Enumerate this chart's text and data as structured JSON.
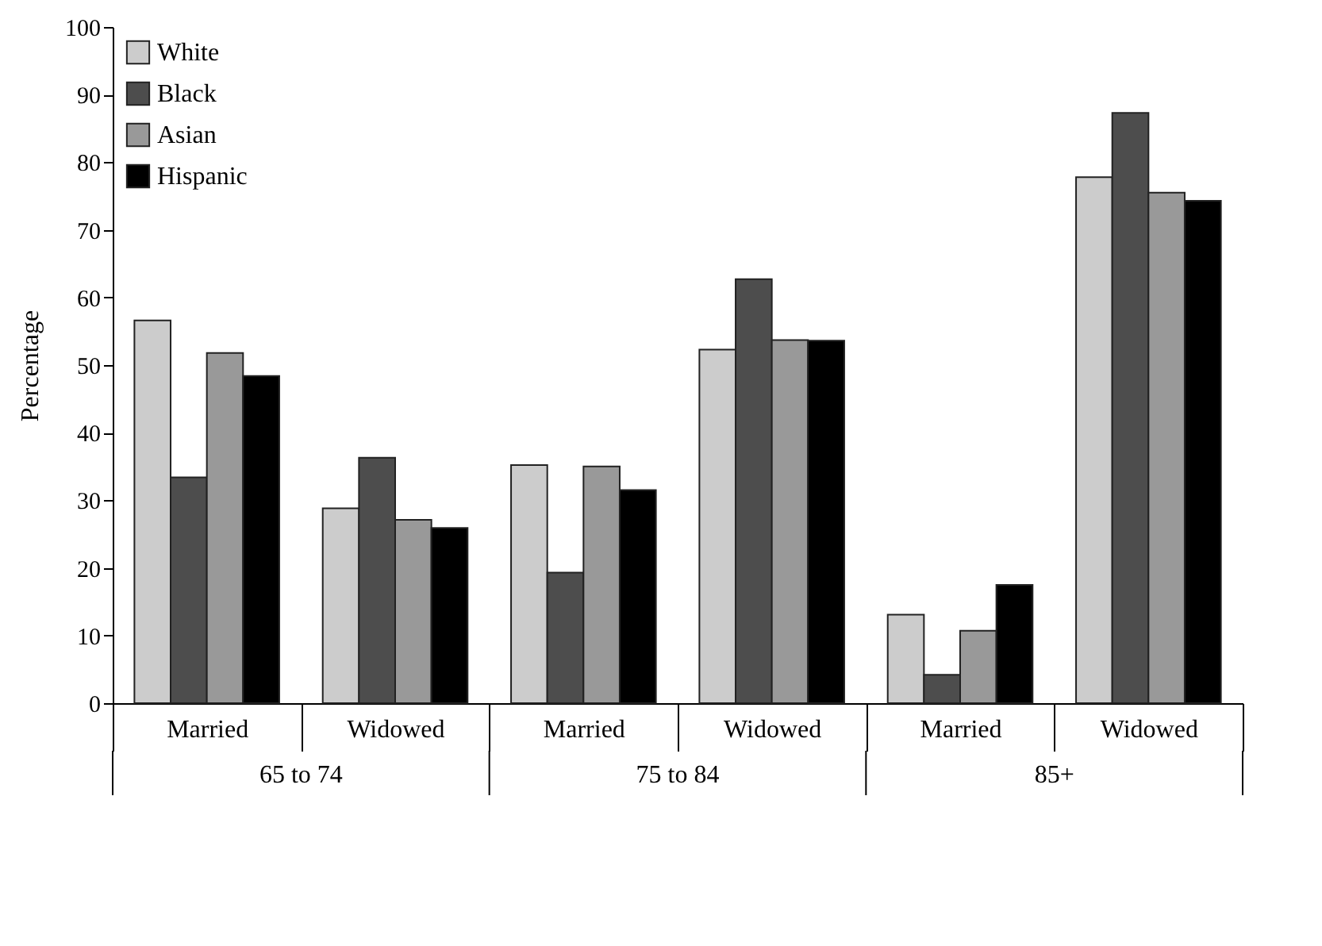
{
  "chart_data": {
    "type": "bar",
    "ylabel": "Percentage",
    "categories": [
      "Married",
      "Widowed",
      "Married",
      "Widowed",
      "Married",
      "Widowed"
    ],
    "series": [
      {
        "name": "White",
        "color": "#cccccc",
        "values": [
          56.6,
          28.8,
          35.2,
          52.3,
          13.1,
          77.8
        ]
      },
      {
        "name": "Black",
        "color": "#4d4d4d",
        "values": [
          33.4,
          36.3,
          19.3,
          62.7,
          4.2,
          87.3
        ]
      },
      {
        "name": "Asian",
        "color": "#999999",
        "values": [
          51.8,
          27.1,
          35.0,
          53.7,
          10.7,
          75.5
        ]
      },
      {
        "name": "Hispanic",
        "color": "#000000",
        "values": [
          48.4,
          25.9,
          31.5,
          53.6,
          17.5,
          74.3
        ]
      }
    ],
    "annotations": [
      "65 to 74",
      "75 to 84",
      "85+"
    ],
    "ylim": [
      0,
      100
    ],
    "yticks": [
      0,
      10,
      20,
      30,
      40,
      50,
      60,
      70,
      80,
      90,
      100
    ],
    "legend": "top left"
  }
}
